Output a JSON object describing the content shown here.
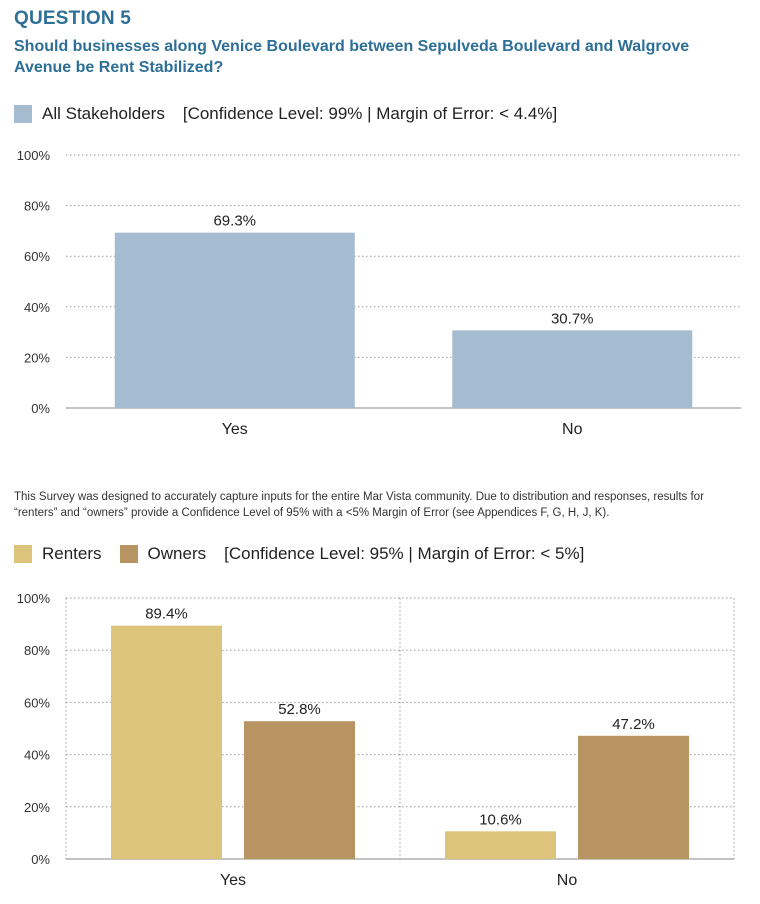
{
  "header": {
    "question_number": "QUESTION 5",
    "question_text": "Should businesses along Venice Boulevard between Sepulveda Boulevard and Walgrove Avenue be Rent Stabilized?"
  },
  "chart1_legend": {
    "series_label": "All Stakeholders",
    "stats": "[Confidence Level: 99%  |  Margin of Error: < 4.4%]"
  },
  "note": "This Survey was designed to accurately capture inputs for the entire Mar Vista community. Due to distribution and responses, results for “renters” and “owners” provide a Confidence Level of 95% with a <5% Margin of Error (see Appendices F, G, H, J, K).",
  "chart2_legend": {
    "series1_label": "Renters",
    "series2_label": "Owners",
    "stats": "[Confidence Level: 95%  |  Margin of Error: < 5%]"
  },
  "colors": {
    "title": "#2e6f97",
    "all_stakeholders": "#a5bbd0",
    "renters": "#dcc47c",
    "owners": "#b89462"
  },
  "chart_data": [
    {
      "type": "bar",
      "categories": [
        "Yes",
        "No"
      ],
      "series": [
        {
          "name": "All Stakeholders",
          "values": [
            69.3,
            30.7
          ],
          "labels": [
            "69.3%",
            "30.7%"
          ]
        }
      ],
      "ylim": [
        0,
        100
      ],
      "yticks": [
        "0%",
        "20%",
        "40%",
        "60%",
        "80%",
        "100%"
      ],
      "grid": "dotted-horizontal"
    },
    {
      "type": "bar",
      "categories": [
        "Yes",
        "No"
      ],
      "series": [
        {
          "name": "Renters",
          "values": [
            89.4,
            10.6
          ],
          "labels": [
            "89.4%",
            "10.6%"
          ]
        },
        {
          "name": "Owners",
          "values": [
            52.8,
            47.2
          ],
          "labels": [
            "52.8%",
            "47.2%"
          ]
        }
      ],
      "ylim": [
        0,
        100
      ],
      "yticks": [
        "0%",
        "20%",
        "40%",
        "60%",
        "80%",
        "100%"
      ],
      "grid": "dotted-horizontal"
    }
  ]
}
